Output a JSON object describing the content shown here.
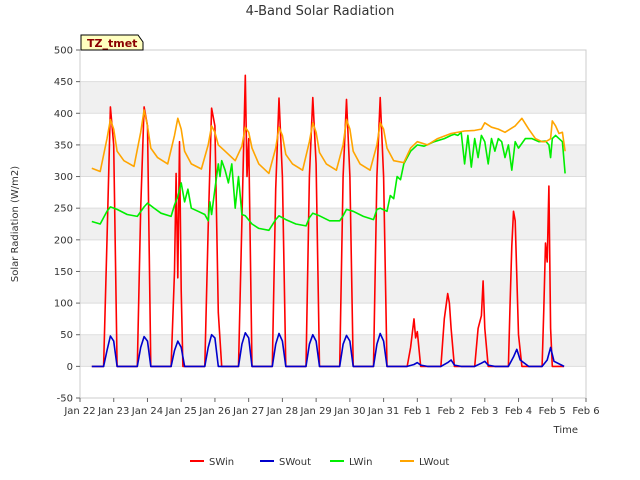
{
  "chart_data": {
    "type": "line",
    "title": "4-Band Solar Radiation",
    "xlabel": "Time",
    "ylabel": "Solar Radiation (W/m2)",
    "site_label": "TZ_tmet",
    "ylim": [
      -50,
      500
    ],
    "yticks": [
      -50,
      0,
      50,
      100,
      150,
      200,
      250,
      300,
      350,
      400,
      450,
      500
    ],
    "xlim": [
      0,
      15
    ],
    "xtick_positions": [
      0,
      1,
      2,
      3,
      4,
      5,
      6,
      7,
      8,
      9,
      10,
      11,
      12,
      13,
      14,
      15
    ],
    "xtick_labels": [
      "Jan 22",
      "Jan 23",
      "Jan 24",
      "Jan 25",
      "Jan 26",
      "Jan 27",
      "Jan 28",
      "Jan 29",
      "Jan 30",
      "Jan 31",
      "Feb 1",
      "Feb 2",
      "Feb 3",
      "Feb 4",
      "Feb 5",
      "Feb 6"
    ],
    "x_units": "days since Jan 22",
    "legend_position": "bottom-center",
    "series": [
      {
        "name": "SWin",
        "color": "#ff0000",
        "x": [
          0.35,
          0.7,
          0.8,
          0.9,
          1.0,
          1.1,
          1.3,
          1.7,
          1.8,
          1.9,
          2.0,
          2.1,
          2.3,
          2.7,
          2.8,
          2.85,
          2.9,
          2.95,
          3.0,
          3.05,
          3.1,
          3.2,
          3.3,
          3.7,
          3.8,
          3.9,
          4.0,
          4.1,
          4.2,
          4.3,
          4.7,
          4.8,
          4.9,
          4.95,
          5.0,
          5.1,
          5.3,
          5.7,
          5.8,
          5.9,
          6.0,
          6.1,
          6.3,
          6.7,
          6.8,
          6.9,
          7.0,
          7.1,
          7.3,
          7.7,
          7.8,
          7.9,
          8.0,
          8.1,
          8.3,
          8.7,
          8.8,
          8.9,
          9.0,
          9.1,
          9.3,
          9.7,
          9.8,
          9.9,
          9.95,
          10.0,
          10.1,
          10.3,
          10.7,
          10.8,
          10.9,
          10.95,
          11.0,
          11.1,
          11.3,
          11.7,
          11.8,
          11.9,
          11.95,
          12.0,
          12.1,
          12.3,
          12.7,
          12.75,
          12.8,
          12.85,
          12.9,
          13.0,
          13.1,
          13.3,
          13.7,
          13.75,
          13.8,
          13.85,
          13.9,
          13.95,
          14.0,
          14.1,
          14.35
        ],
        "values": [
          0,
          0,
          200,
          410,
          350,
          0,
          0,
          0,
          250,
          410,
          380,
          0,
          0,
          0,
          150,
          305,
          140,
          355,
          120,
          0,
          0,
          0,
          0,
          0,
          220,
          408,
          380,
          85,
          0,
          0,
          0,
          230,
          460,
          300,
          360,
          0,
          0,
          0,
          280,
          424,
          300,
          0,
          0,
          0,
          300,
          425,
          320,
          0,
          0,
          0,
          300,
          422,
          300,
          0,
          0,
          0,
          300,
          425,
          300,
          0,
          0,
          0,
          30,
          75,
          45,
          55,
          0,
          0,
          0,
          75,
          115,
          100,
          60,
          0,
          0,
          0,
          60,
          80,
          135,
          60,
          0,
          0,
          0,
          100,
          190,
          245,
          230,
          50,
          0,
          0,
          0,
          90,
          195,
          165,
          285,
          60,
          0,
          0,
          0
        ]
      },
      {
        "name": "SWout",
        "color": "#0000cc",
        "x": [
          0.35,
          0.7,
          0.8,
          0.9,
          1.0,
          1.1,
          1.3,
          1.7,
          1.8,
          1.9,
          2.0,
          2.1,
          2.3,
          2.7,
          2.8,
          2.9,
          3.0,
          3.1,
          3.3,
          3.7,
          3.8,
          3.9,
          4.0,
          4.1,
          4.3,
          4.7,
          4.8,
          4.9,
          5.0,
          5.1,
          5.3,
          5.7,
          5.8,
          5.9,
          6.0,
          6.1,
          6.3,
          6.7,
          6.8,
          6.9,
          7.0,
          7.1,
          7.3,
          7.7,
          7.8,
          7.9,
          8.0,
          8.1,
          8.3,
          8.7,
          8.8,
          8.9,
          9.0,
          9.1,
          9.3,
          9.7,
          9.9,
          10.0,
          10.1,
          10.3,
          10.7,
          10.9,
          11.0,
          11.1,
          11.3,
          11.7,
          11.9,
          12.0,
          12.1,
          12.3,
          12.7,
          12.85,
          12.95,
          13.05,
          13.3,
          13.7,
          13.85,
          13.95,
          14.05,
          14.35
        ],
        "values": [
          0,
          0,
          25,
          48,
          40,
          0,
          0,
          0,
          30,
          47,
          40,
          0,
          0,
          0,
          25,
          40,
          30,
          0,
          0,
          0,
          30,
          50,
          45,
          0,
          0,
          0,
          35,
          53,
          45,
          0,
          0,
          0,
          35,
          52,
          40,
          0,
          0,
          0,
          35,
          50,
          40,
          0,
          0,
          0,
          35,
          49,
          40,
          0,
          0,
          0,
          35,
          52,
          40,
          0,
          0,
          0,
          3,
          6,
          2,
          0,
          0,
          6,
          10,
          2,
          0,
          0,
          5,
          8,
          2,
          0,
          0,
          15,
          27,
          10,
          0,
          0,
          10,
          30,
          8,
          0
        ]
      },
      {
        "name": "LWin",
        "color": "#00ee00",
        "x": [
          0.35,
          0.6,
          0.8,
          0.9,
          1.1,
          1.4,
          1.7,
          1.9,
          2.0,
          2.2,
          2.4,
          2.7,
          2.8,
          2.9,
          3.0,
          3.1,
          3.2,
          3.3,
          3.5,
          3.7,
          3.8,
          3.85,
          3.9,
          4.0,
          4.1,
          4.15,
          4.2,
          4.3,
          4.4,
          4.5,
          4.6,
          4.7,
          4.8,
          4.9,
          5.1,
          5.3,
          5.6,
          5.8,
          5.9,
          6.1,
          6.4,
          6.7,
          6.8,
          6.9,
          7.1,
          7.4,
          7.7,
          7.8,
          7.9,
          8.1,
          8.4,
          8.7,
          8.8,
          8.9,
          9.1,
          9.2,
          9.3,
          9.4,
          9.5,
          9.6,
          9.8,
          10.0,
          10.2,
          10.5,
          10.8,
          11.0,
          11.1,
          11.2,
          11.3,
          11.4,
          11.5,
          11.6,
          11.7,
          11.8,
          11.9,
          12.0,
          12.1,
          12.2,
          12.3,
          12.4,
          12.5,
          12.6,
          12.7,
          12.8,
          12.9,
          13.0,
          13.2,
          13.4,
          13.6,
          13.8,
          13.9,
          13.95,
          14.0,
          14.1,
          14.2,
          14.3,
          14.38
        ],
        "values": [
          229,
          225,
          245,
          252,
          248,
          240,
          237,
          252,
          258,
          250,
          242,
          237,
          255,
          268,
          290,
          260,
          280,
          250,
          245,
          240,
          230,
          260,
          240,
          280,
          320,
          300,
          325,
          310,
          290,
          320,
          250,
          300,
          240,
          238,
          225,
          218,
          215,
          232,
          238,
          232,
          225,
          222,
          235,
          242,
          238,
          230,
          230,
          238,
          248,
          245,
          237,
          232,
          248,
          250,
          245,
          270,
          265,
          300,
          295,
          320,
          340,
          350,
          348,
          355,
          360,
          365,
          367,
          365,
          370,
          320,
          365,
          315,
          360,
          330,
          365,
          355,
          320,
          360,
          340,
          360,
          355,
          330,
          350,
          310,
          355,
          345,
          360,
          360,
          355,
          356,
          350,
          330,
          360,
          365,
          360,
          355,
          305
        ]
      },
      {
        "name": "LWout",
        "color": "#ffa500",
        "x": [
          0.35,
          0.6,
          0.8,
          0.9,
          1.0,
          1.1,
          1.3,
          1.6,
          1.8,
          1.9,
          2.0,
          2.1,
          2.3,
          2.6,
          2.8,
          2.9,
          3.0,
          3.1,
          3.3,
          3.6,
          3.8,
          3.9,
          4.0,
          4.1,
          4.3,
          4.6,
          4.8,
          4.9,
          5.0,
          5.1,
          5.3,
          5.6,
          5.8,
          5.9,
          6.0,
          6.1,
          6.3,
          6.6,
          6.8,
          6.9,
          7.0,
          7.1,
          7.3,
          7.6,
          7.8,
          7.9,
          8.0,
          8.1,
          8.3,
          8.6,
          8.8,
          8.9,
          9.0,
          9.1,
          9.3,
          9.6,
          9.8,
          10.0,
          10.3,
          10.6,
          11.0,
          11.4,
          11.7,
          11.9,
          12.0,
          12.2,
          12.4,
          12.6,
          12.9,
          13.1,
          13.3,
          13.5,
          13.7,
          13.8,
          13.9,
          13.95,
          14.0,
          14.1,
          14.2,
          14.3,
          14.38
        ],
        "values": [
          313,
          308,
          360,
          390,
          375,
          340,
          325,
          316,
          370,
          405,
          380,
          345,
          330,
          320,
          365,
          392,
          375,
          340,
          320,
          312,
          350,
          380,
          370,
          350,
          340,
          325,
          348,
          378,
          370,
          345,
          320,
          305,
          345,
          378,
          365,
          335,
          320,
          310,
          355,
          385,
          370,
          338,
          320,
          310,
          350,
          390,
          375,
          340,
          320,
          310,
          350,
          385,
          375,
          345,
          325,
          322,
          345,
          355,
          350,
          360,
          368,
          372,
          373,
          375,
          385,
          378,
          375,
          370,
          380,
          392,
          375,
          360,
          355,
          355,
          358,
          360,
          388,
          380,
          368,
          370,
          340
        ]
      }
    ]
  }
}
